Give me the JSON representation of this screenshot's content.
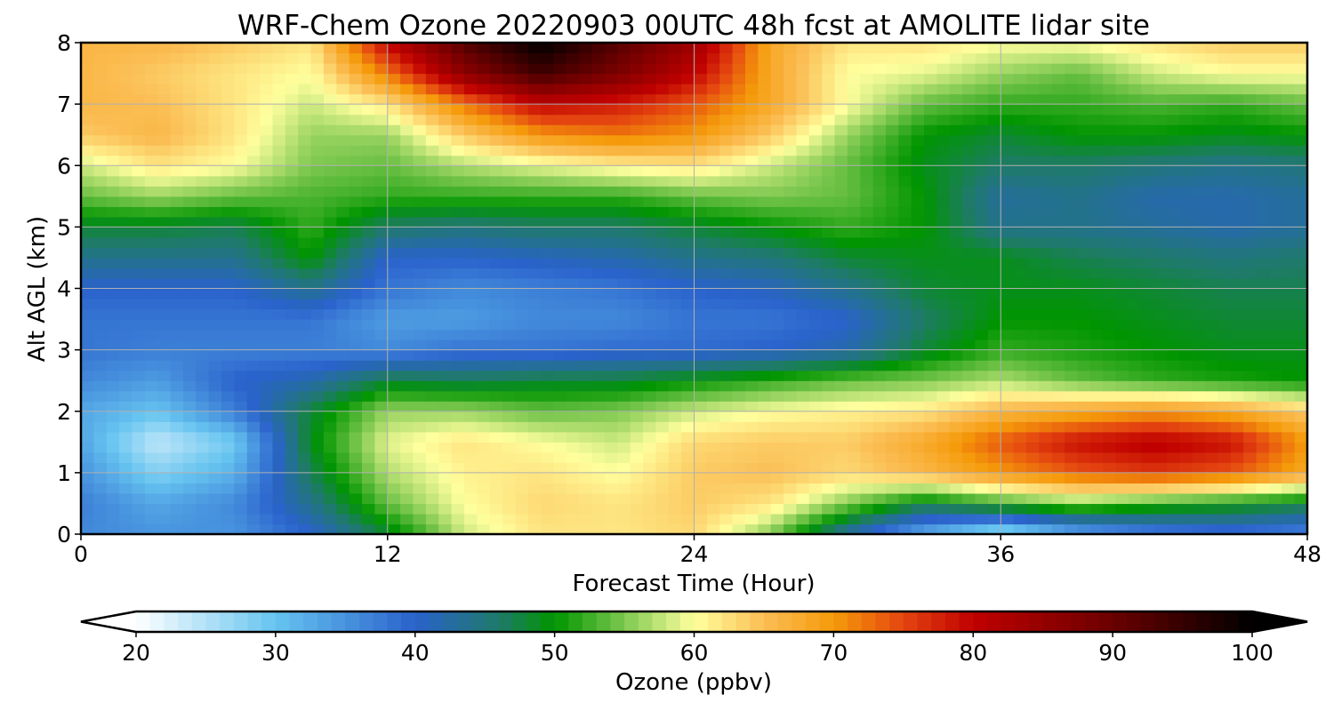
{
  "chart_data": {
    "type": "heatmap",
    "title": "WRF-Chem Ozone  20220903 00UTC 48h fcst at AMOLITE lidar site",
    "xlabel": "Forecast Time (Hour)",
    "ylabel": "Alt AGL (km)",
    "xlim": [
      0,
      48
    ],
    "ylim": [
      0,
      8
    ],
    "xticks": [
      "0",
      "12",
      "24",
      "36",
      "48"
    ],
    "yticks": [
      "0",
      "1",
      "2",
      "3",
      "4",
      "5",
      "6",
      "7",
      "8"
    ],
    "grid": true,
    "x": [
      0,
      3,
      6,
      9,
      12,
      15,
      18,
      21,
      24,
      27,
      30,
      33,
      36,
      39,
      42,
      45,
      48
    ],
    "y": [
      0,
      0.5,
      1,
      1.5,
      2,
      2.5,
      3,
      3.5,
      4,
      4.5,
      5,
      5.5,
      6,
      6.5,
      7,
      7.5,
      8
    ],
    "z": [
      [
        36,
        35,
        35,
        40,
        48,
        58,
        62,
        62,
        63,
        55,
        42,
        32,
        25,
        32,
        36,
        38,
        36
      ],
      [
        37,
        33,
        36,
        44,
        54,
        60,
        63,
        62,
        64,
        62,
        55,
        48,
        52,
        55,
        52,
        50,
        48
      ],
      [
        35,
        28,
        32,
        47,
        57,
        61,
        62,
        60,
        64,
        65,
        63,
        66,
        70,
        74,
        76,
        74,
        68
      ],
      [
        33,
        24,
        29,
        49,
        59,
        62,
        60,
        58,
        63,
        64,
        64,
        68,
        74,
        79,
        81,
        79,
        70
      ],
      [
        33,
        30,
        37,
        48,
        56,
        56,
        54,
        55,
        58,
        60,
        61,
        62,
        66,
        68,
        70,
        68,
        64
      ],
      [
        36,
        34,
        40,
        42,
        48,
        47,
        48,
        48,
        50,
        52,
        54,
        55,
        57,
        54,
        52,
        51,
        50
      ],
      [
        38,
        37,
        37,
        37,
        36,
        38,
        38,
        39,
        39,
        40,
        42,
        48,
        52,
        51,
        50,
        49,
        49
      ],
      [
        38,
        38,
        38,
        38,
        34,
        34,
        36,
        36,
        38,
        38,
        40,
        46,
        50,
        50,
        49,
        48,
        48
      ],
      [
        40,
        40,
        40,
        44,
        38,
        36,
        37,
        38,
        40,
        41,
        44,
        48,
        49,
        49,
        48,
        47,
        47
      ],
      [
        44,
        44,
        44,
        50,
        40,
        40,
        41,
        42,
        44,
        45,
        48,
        49,
        49,
        47,
        46,
        45,
        46
      ],
      [
        48,
        48,
        47,
        52,
        46,
        45,
        46,
        46,
        48,
        50,
        52,
        50,
        44,
        44,
        43,
        42,
        43
      ],
      [
        54,
        56,
        54,
        53,
        52,
        52,
        52,
        52,
        54,
        55,
        54,
        50,
        43,
        44,
        42,
        42,
        43
      ],
      [
        58,
        62,
        60,
        55,
        54,
        57,
        59,
        61,
        62,
        58,
        54,
        49,
        46,
        46,
        45,
        44,
        45
      ],
      [
        64,
        66,
        62,
        56,
        56,
        64,
        70,
        72,
        70,
        64,
        56,
        50,
        48,
        50,
        50,
        49,
        50
      ],
      [
        66,
        65,
        62,
        58,
        62,
        72,
        80,
        78,
        74,
        68,
        60,
        54,
        52,
        52,
        53,
        52,
        54
      ],
      [
        66,
        64,
        62,
        60,
        72,
        86,
        94,
        88,
        80,
        68,
        60,
        59,
        56,
        54,
        58,
        60,
        60
      ],
      [
        66,
        66,
        64,
        62,
        80,
        92,
        100,
        92,
        84,
        68,
        62,
        62,
        60,
        60,
        62,
        64,
        64
      ]
    ],
    "colorbar": {
      "label": "Ozone  (ppbv)",
      "ticks": [
        "20",
        "30",
        "40",
        "50",
        "60",
        "70",
        "80",
        "90",
        "100"
      ],
      "min": 20,
      "max": 100,
      "extend": "both"
    },
    "colormap": [
      [
        20,
        "#ffffff"
      ],
      [
        30,
        "#66c4f0"
      ],
      [
        40,
        "#2a62cc"
      ],
      [
        46,
        "#1f7a6a"
      ],
      [
        50,
        "#009500"
      ],
      [
        55,
        "#7ec850"
      ],
      [
        60,
        "#ffff9e"
      ],
      [
        65,
        "#fbbe55"
      ],
      [
        70,
        "#f59a0a"
      ],
      [
        75,
        "#e44510"
      ],
      [
        80,
        "#c00000"
      ],
      [
        90,
        "#6a0000"
      ],
      [
        100,
        "#000000"
      ]
    ]
  }
}
